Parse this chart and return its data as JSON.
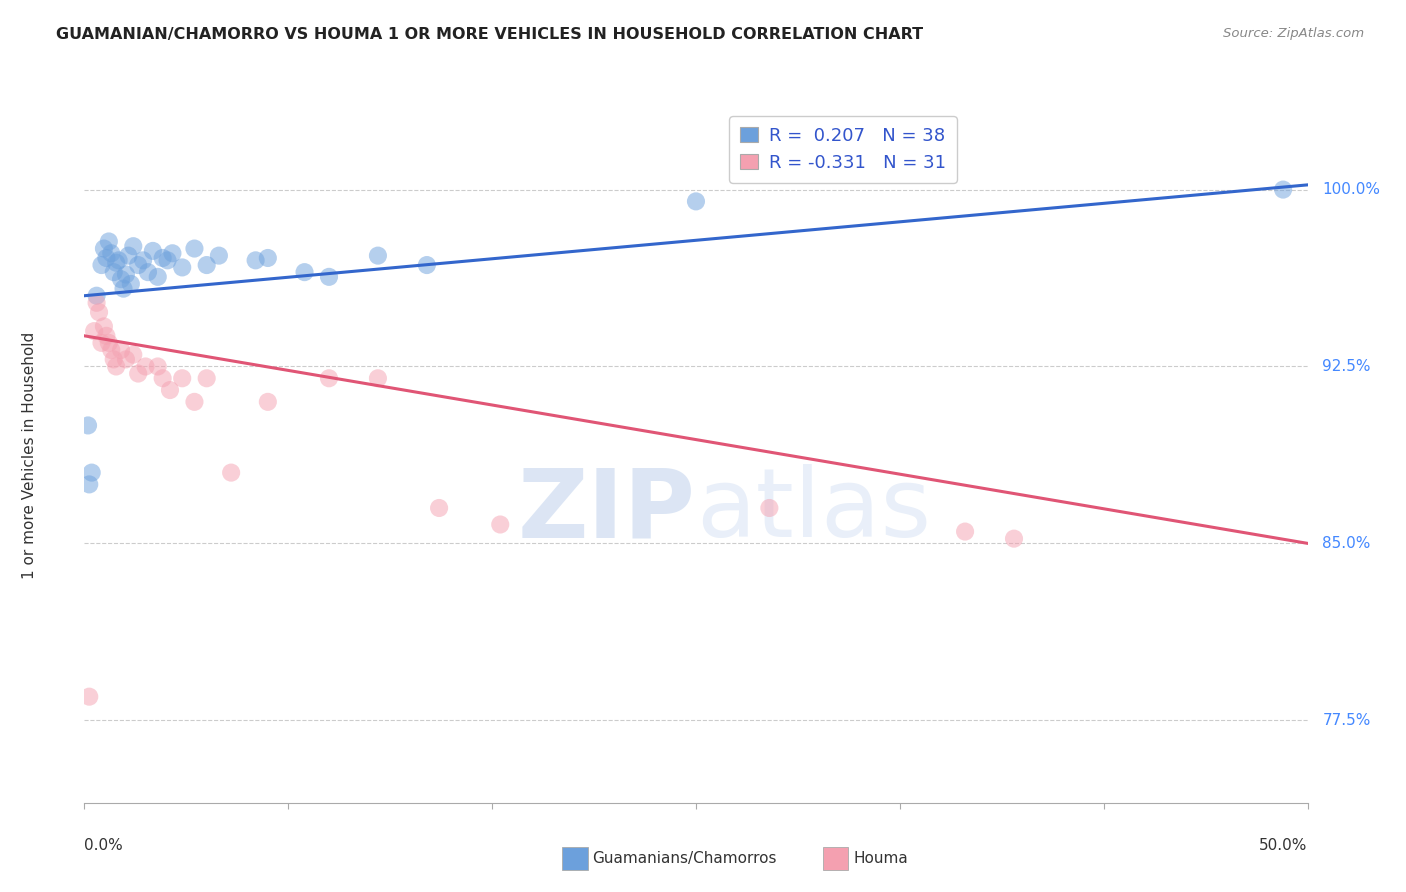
{
  "title": "GUAMANIAN/CHAMORRO VS HOUMA 1 OR MORE VEHICLES IN HOUSEHOLD CORRELATION CHART",
  "source": "Source: ZipAtlas.com",
  "ylabel": "1 or more Vehicles in Household",
  "yticks": [
    77.5,
    85.0,
    92.5,
    100.0
  ],
  "ytick_labels": [
    "77.5%",
    "85.0%",
    "92.5%",
    "100.0%"
  ],
  "xlim": [
    0.0,
    50.0
  ],
  "ylim": [
    74.0,
    103.5
  ],
  "R_blue": 0.207,
  "N_blue": 38,
  "R_pink": -0.331,
  "N_pink": 31,
  "blue_color": "#6CA0DC",
  "pink_color": "#F4A0B0",
  "blue_line_color": "#3366CC",
  "pink_line_color": "#E05575",
  "blue_scatter": [
    [
      0.5,
      95.5
    ],
    [
      0.7,
      96.8
    ],
    [
      0.8,
      97.5
    ],
    [
      0.9,
      97.1
    ],
    [
      1.0,
      97.8
    ],
    [
      1.1,
      97.3
    ],
    [
      1.2,
      96.5
    ],
    [
      1.3,
      96.9
    ],
    [
      1.4,
      97.0
    ],
    [
      1.5,
      96.2
    ],
    [
      1.6,
      95.8
    ],
    [
      1.7,
      96.4
    ],
    [
      1.8,
      97.2
    ],
    [
      1.9,
      96.0
    ],
    [
      2.0,
      97.6
    ],
    [
      2.2,
      96.8
    ],
    [
      2.4,
      97.0
    ],
    [
      2.6,
      96.5
    ],
    [
      2.8,
      97.4
    ],
    [
      3.0,
      96.3
    ],
    [
      3.2,
      97.1
    ],
    [
      3.4,
      97.0
    ],
    [
      3.6,
      97.3
    ],
    [
      4.0,
      96.7
    ],
    [
      4.5,
      97.5
    ],
    [
      5.0,
      96.8
    ],
    [
      5.5,
      97.2
    ],
    [
      7.0,
      97.0
    ],
    [
      7.5,
      97.1
    ],
    [
      9.0,
      96.5
    ],
    [
      10.0,
      96.3
    ],
    [
      12.0,
      97.2
    ],
    [
      14.0,
      96.8
    ],
    [
      0.3,
      88.0
    ],
    [
      0.2,
      87.5
    ],
    [
      25.0,
      99.5
    ],
    [
      49.0,
      100.0
    ],
    [
      0.15,
      90.0
    ]
  ],
  "pink_scatter": [
    [
      0.4,
      94.0
    ],
    [
      0.5,
      95.2
    ],
    [
      0.6,
      94.8
    ],
    [
      0.7,
      93.5
    ],
    [
      0.8,
      94.2
    ],
    [
      0.9,
      93.8
    ],
    [
      1.0,
      93.5
    ],
    [
      1.1,
      93.2
    ],
    [
      1.2,
      92.8
    ],
    [
      1.3,
      92.5
    ],
    [
      1.5,
      93.2
    ],
    [
      1.7,
      92.8
    ],
    [
      2.0,
      93.0
    ],
    [
      2.2,
      92.2
    ],
    [
      2.5,
      92.5
    ],
    [
      3.0,
      92.5
    ],
    [
      3.2,
      92.0
    ],
    [
      3.5,
      91.5
    ],
    [
      4.0,
      92.0
    ],
    [
      4.5,
      91.0
    ],
    [
      5.0,
      92.0
    ],
    [
      6.0,
      88.0
    ],
    [
      7.5,
      91.0
    ],
    [
      10.0,
      92.0
    ],
    [
      12.0,
      92.0
    ],
    [
      14.5,
      86.5
    ],
    [
      17.0,
      85.8
    ],
    [
      28.0,
      86.5
    ],
    [
      36.0,
      85.5
    ],
    [
      38.0,
      85.2
    ],
    [
      0.2,
      78.5
    ]
  ],
  "blue_line_x": [
    0.0,
    50.0
  ],
  "blue_line_y": [
    95.5,
    100.2
  ],
  "pink_line_x": [
    0.0,
    50.0
  ],
  "pink_line_y": [
    93.8,
    85.0
  ]
}
